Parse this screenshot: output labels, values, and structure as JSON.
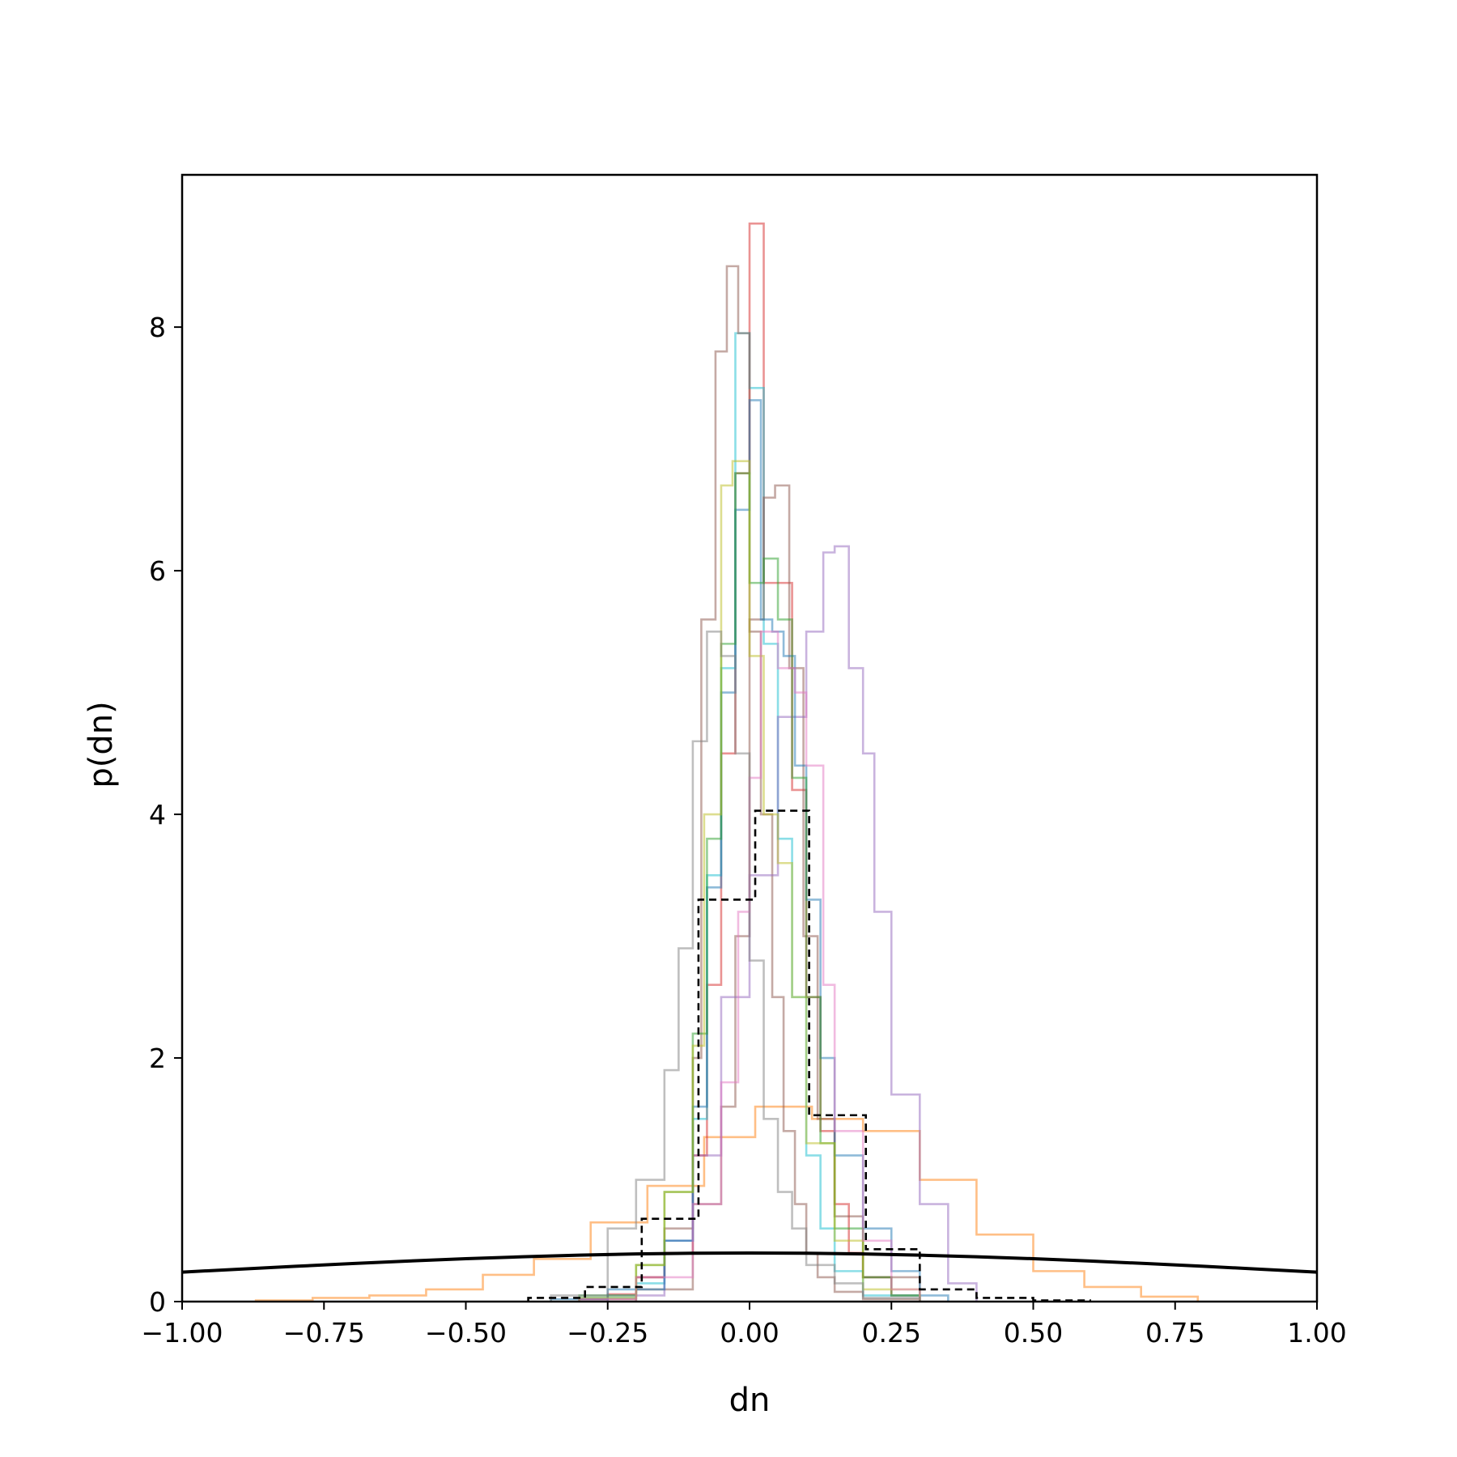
{
  "chart_data": {
    "type": "line",
    "title": "",
    "xlabel": "dn",
    "ylabel": "p(dn)",
    "xlim": [
      -1.0,
      1.0
    ],
    "ylim": [
      0,
      9.25
    ],
    "x_ticks": [
      -1.0,
      -0.75,
      -0.5,
      -0.25,
      0.0,
      0.25,
      0.5,
      0.75,
      1.0
    ],
    "x_tick_labels": [
      "−1.00",
      "−0.75",
      "−0.50",
      "−0.25",
      "0.00",
      "0.25",
      "0.50",
      "0.75",
      "1.00"
    ],
    "y_ticks": [
      0,
      2,
      4,
      6,
      8
    ],
    "y_tick_labels": [
      "0",
      "2",
      "4",
      "6",
      "8"
    ],
    "grid": false,
    "legend": "none",
    "series": [
      {
        "kind": "curve",
        "color": "#000000",
        "style": "solid",
        "x": [
          -1.0,
          -0.9,
          -0.8,
          -0.7,
          -0.6,
          -0.5,
          -0.4,
          -0.3,
          -0.2,
          -0.1,
          0.0,
          0.1,
          0.2,
          0.3,
          0.4,
          0.5,
          0.6,
          0.7,
          0.8,
          0.9,
          1.0
        ],
        "y": [
          0.242,
          0.266,
          0.29,
          0.312,
          0.333,
          0.352,
          0.368,
          0.381,
          0.391,
          0.397,
          0.399,
          0.397,
          0.391,
          0.381,
          0.368,
          0.352,
          0.333,
          0.312,
          0.29,
          0.266,
          0.242
        ]
      },
      {
        "kind": "step",
        "color": "#000000",
        "style": "dashed",
        "edges": [
          -0.39,
          -0.29,
          -0.19,
          -0.09,
          0.01,
          0.105,
          0.205,
          0.3,
          0.4,
          0.5,
          0.6
        ],
        "heights": [
          0.03,
          0.12,
          0.68,
          3.3,
          4.03,
          1.53,
          0.43,
          0.1,
          0.03,
          0.01
        ]
      },
      {
        "kind": "step",
        "color": "#ff7f0e",
        "style": "solid",
        "edges": [
          -0.87,
          -0.77,
          -0.67,
          -0.57,
          -0.47,
          -0.38,
          -0.28,
          -0.18,
          -0.08,
          0.01,
          0.11,
          0.2,
          0.3,
          0.4,
          0.5,
          0.59,
          0.69,
          0.79
        ],
        "heights": [
          0.01,
          0.03,
          0.05,
          0.1,
          0.22,
          0.35,
          0.65,
          0.95,
          1.35,
          1.6,
          1.5,
          1.4,
          1.0,
          0.55,
          0.25,
          0.12,
          0.04
        ]
      },
      {
        "kind": "step",
        "color": "#d62728",
        "style": "solid",
        "edges": [
          -0.3,
          -0.25,
          -0.2,
          -0.15,
          -0.1,
          -0.075,
          -0.05,
          -0.025,
          0.0,
          0.025,
          0.05,
          0.075,
          0.1,
          0.125,
          0.15,
          0.175,
          0.2,
          0.25,
          0.3
        ],
        "heights": [
          0.02,
          0.06,
          0.2,
          0.4,
          1.2,
          2.6,
          4.5,
          6.8,
          8.85,
          5.9,
          5.9,
          4.2,
          2.5,
          1.4,
          0.8,
          0.4,
          0.2,
          0.05
        ]
      },
      {
        "kind": "step",
        "color": "#17becf",
        "style": "solid",
        "edges": [
          -0.3,
          -0.2,
          -0.15,
          -0.1,
          -0.075,
          -0.05,
          -0.025,
          0.0,
          0.025,
          0.05,
          0.075,
          0.1,
          0.125,
          0.15,
          0.2,
          0.3
        ],
        "heights": [
          0.03,
          0.15,
          0.5,
          1.5,
          3.5,
          5.2,
          7.95,
          7.5,
          5.4,
          3.8,
          2.5,
          1.2,
          0.6,
          0.25,
          0.05
        ]
      },
      {
        "kind": "step",
        "color": "#8c564b",
        "style": "solid",
        "edges": [
          -0.3,
          -0.2,
          -0.15,
          -0.1,
          -0.085,
          -0.06,
          -0.04,
          -0.02,
          0.0,
          0.02,
          0.04,
          0.06,
          0.08,
          0.1,
          0.12,
          0.15,
          0.2,
          0.3
        ],
        "heights": [
          0.02,
          0.2,
          0.6,
          2.0,
          5.6,
          7.8,
          8.5,
          7.95,
          5.5,
          4.0,
          2.5,
          1.4,
          0.8,
          0.4,
          0.2,
          0.08,
          0.02
        ]
      },
      {
        "kind": "step",
        "color": "#8c564b",
        "style": "solid",
        "edges": [
          -0.2,
          -0.1,
          -0.05,
          -0.025,
          0.0,
          0.025,
          0.045,
          0.07,
          0.095,
          0.12,
          0.15,
          0.2,
          0.3
        ],
        "heights": [
          0.1,
          0.8,
          1.6,
          3.0,
          5.6,
          6.6,
          6.7,
          5.2,
          3.0,
          1.5,
          0.7,
          0.2
        ]
      },
      {
        "kind": "step",
        "color": "#9467bd",
        "style": "solid",
        "edges": [
          -0.25,
          -0.15,
          -0.1,
          -0.05,
          0.0,
          0.05,
          0.1,
          0.13,
          0.15,
          0.175,
          0.2,
          0.22,
          0.25,
          0.3,
          0.35,
          0.4
        ],
        "heights": [
          0.05,
          0.5,
          1.2,
          2.5,
          3.5,
          4.8,
          5.5,
          6.15,
          6.2,
          5.2,
          4.5,
          3.2,
          1.7,
          0.8,
          0.15
        ]
      },
      {
        "kind": "step",
        "color": "#1f77b4",
        "style": "solid",
        "edges": [
          -0.35,
          -0.25,
          -0.15,
          -0.1,
          -0.075,
          -0.05,
          -0.025,
          0.0,
          0.02,
          0.04,
          0.06,
          0.08,
          0.1,
          0.125,
          0.15,
          0.2,
          0.25,
          0.3,
          0.35
        ],
        "heights": [
          0.02,
          0.1,
          0.5,
          1.6,
          3.4,
          5.0,
          6.5,
          7.4,
          5.6,
          5.5,
          5.3,
          4.4,
          3.3,
          2.0,
          1.2,
          0.6,
          0.25,
          0.05
        ]
      },
      {
        "kind": "step",
        "color": "#2ca02c",
        "style": "solid",
        "edges": [
          -0.3,
          -0.2,
          -0.15,
          -0.1,
          -0.075,
          -0.05,
          -0.025,
          0.0,
          0.025,
          0.05,
          0.075,
          0.1,
          0.125,
          0.15,
          0.2,
          0.25,
          0.3
        ],
        "heights": [
          0.05,
          0.3,
          0.9,
          2.2,
          3.8,
          5.4,
          6.8,
          5.9,
          6.1,
          5.6,
          4.3,
          2.5,
          1.3,
          0.6,
          0.2,
          0.05
        ]
      },
      {
        "kind": "step",
        "color": "#bcbd22",
        "style": "solid",
        "edges": [
          -0.3,
          -0.2,
          -0.15,
          -0.1,
          -0.08,
          -0.05,
          -0.03,
          0.0,
          0.025,
          0.05,
          0.075,
          0.1,
          0.15,
          0.2,
          0.3
        ],
        "heights": [
          0.03,
          0.3,
          0.9,
          2.1,
          4.0,
          6.7,
          6.9,
          5.3,
          4.0,
          3.6,
          2.5,
          1.3,
          0.5,
          0.1
        ]
      },
      {
        "kind": "step",
        "color": "#e377c2",
        "style": "solid",
        "edges": [
          -0.3,
          -0.2,
          -0.1,
          -0.05,
          -0.02,
          0.0,
          0.02,
          0.05,
          0.08,
          0.1,
          0.13,
          0.15,
          0.2,
          0.25,
          0.3
        ],
        "heights": [
          0.02,
          0.2,
          0.8,
          1.8,
          3.2,
          4.3,
          5.5,
          5.2,
          5.0,
          4.4,
          2.6,
          1.4,
          0.5,
          0.1
        ]
      },
      {
        "kind": "step",
        "color": "#7f7f7f",
        "style": "solid",
        "edges": [
          -0.35,
          -0.25,
          -0.2,
          -0.15,
          -0.125,
          -0.1,
          -0.075,
          -0.05,
          -0.025,
          0.0,
          0.025,
          0.05,
          0.075,
          0.1,
          0.15,
          0.2,
          0.3
        ],
        "heights": [
          0.05,
          0.6,
          1.0,
          1.9,
          2.9,
          4.6,
          5.5,
          5.3,
          4.5,
          2.8,
          1.5,
          0.9,
          0.6,
          0.3,
          0.15,
          0.03
        ]
      }
    ]
  }
}
